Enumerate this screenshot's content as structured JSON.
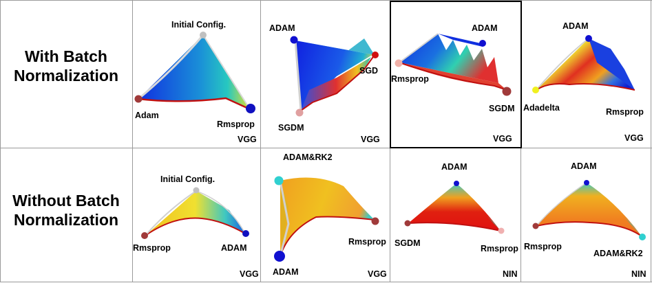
{
  "rows": [
    {
      "label_line1": "With Batch",
      "label_line2": "Normalization",
      "cells": [
        {
          "labels": [
            "Initial Config.",
            "Adam",
            "Rmsprop"
          ],
          "net": "VGG"
        },
        {
          "labels": [
            "ADAM",
            "SGD",
            "SGDM"
          ],
          "net": "VGG"
        },
        {
          "labels": [
            "ADAM",
            "Rmsprop",
            "SGDM"
          ],
          "net": "VGG"
        },
        {
          "labels": [
            "ADAM",
            "Adadelta",
            "Rmsprop"
          ],
          "net": "VGG"
        }
      ]
    },
    {
      "label_line1": "Without Batch",
      "label_line2": "Normalization",
      "cells": [
        {
          "labels": [
            "Initial Config.",
            "Rmsprop",
            "ADAM"
          ],
          "net": "VGG"
        },
        {
          "labels": [
            "ADAM&RK2",
            "Rmsprop",
            "ADAM"
          ],
          "net": "VGG"
        },
        {
          "labels": [
            "ADAM",
            "SGDM",
            "Rmsprop"
          ],
          "net": "NIN"
        },
        {
          "labels": [
            "ADAM",
            "Rmsprop",
            "ADAM&RK2"
          ],
          "net": "NIN"
        }
      ]
    }
  ]
}
